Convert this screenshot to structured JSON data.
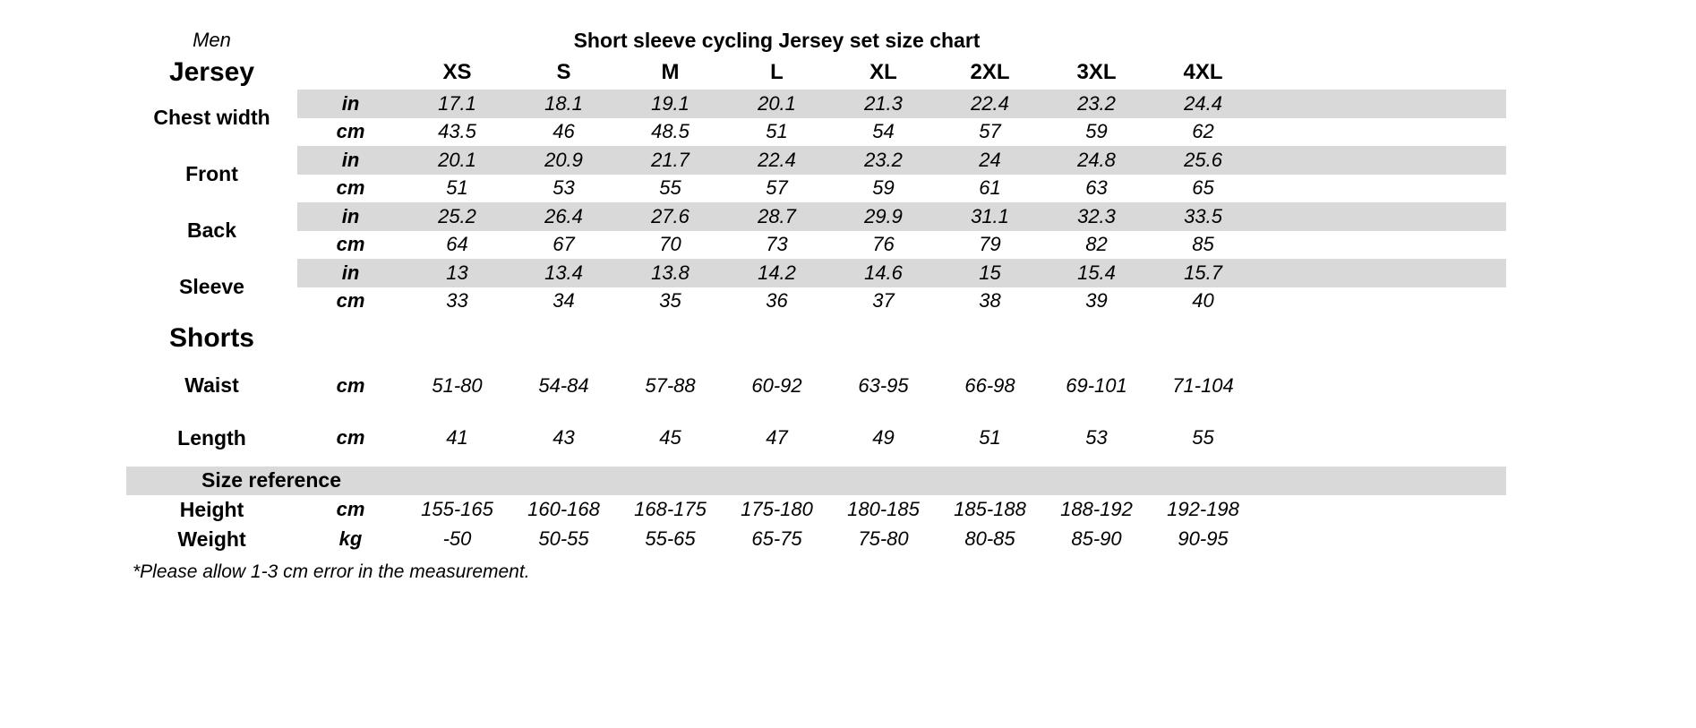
{
  "header": {
    "group_label": "Men",
    "title": "Short sleeve cycling Jersey set size chart"
  },
  "table": {
    "jersey_label": "Jersey",
    "sizes": [
      "XS",
      "S",
      "M",
      "L",
      "XL",
      "2XL",
      "3XL",
      "4XL"
    ],
    "jersey_rows": [
      {
        "label": "Chest width",
        "unit_in": "in",
        "unit_cm": "cm",
        "in": [
          "17.1",
          "18.1",
          "19.1",
          "20.1",
          "21.3",
          "22.4",
          "23.2",
          "24.4"
        ],
        "cm": [
          "43.5",
          "46",
          "48.5",
          "51",
          "54",
          "57",
          "59",
          "62"
        ]
      },
      {
        "label": "Front",
        "unit_in": "in",
        "unit_cm": "cm",
        "in": [
          "20.1",
          "20.9",
          "21.7",
          "22.4",
          "23.2",
          "24",
          "24.8",
          "25.6"
        ],
        "cm": [
          "51",
          "53",
          "55",
          "57",
          "59",
          "61",
          "63",
          "65"
        ]
      },
      {
        "label": "Back",
        "unit_in": "in",
        "unit_cm": "cm",
        "in": [
          "25.2",
          "26.4",
          "27.6",
          "28.7",
          "29.9",
          "31.1",
          "32.3",
          "33.5"
        ],
        "cm": [
          "64",
          "67",
          "70",
          "73",
          "76",
          "79",
          "82",
          "85"
        ]
      },
      {
        "label": "Sleeve",
        "unit_in": "in",
        "unit_cm": "cm",
        "in": [
          "13",
          "13.4",
          "13.8",
          "14.2",
          "14.6",
          "15",
          "15.4",
          "15.7"
        ],
        "cm": [
          "33",
          "34",
          "35",
          "36",
          "37",
          "38",
          "39",
          "40"
        ]
      }
    ],
    "shorts_label": "Shorts",
    "shorts_rows": [
      {
        "label": "Waist",
        "unit": "cm",
        "values": [
          "51-80",
          "54-84",
          "57-88",
          "60-92",
          "63-95",
          "66-98",
          "69-101",
          "71-104"
        ]
      },
      {
        "label": "Length",
        "unit": "cm",
        "values": [
          "41",
          "43",
          "45",
          "47",
          "49",
          "51",
          "53",
          "55"
        ]
      }
    ],
    "size_reference_label": "Size reference",
    "reference_rows": [
      {
        "label": "Height",
        "unit": "cm",
        "values": [
          "155-165",
          "160-168",
          "168-175",
          "175-180",
          "180-185",
          "185-188",
          "188-192",
          "192-198"
        ]
      },
      {
        "label": "Weight",
        "unit": "kg",
        "values": [
          "-50",
          "50-55",
          "55-65",
          "65-75",
          "75-80",
          "80-85",
          "85-90",
          "90-95"
        ]
      }
    ]
  },
  "footnote": "*Please allow 1-3 cm error in the measurement.",
  "colors": {
    "row_shade": "#d9d9d9",
    "text": "#000000",
    "background": "#ffffff"
  }
}
